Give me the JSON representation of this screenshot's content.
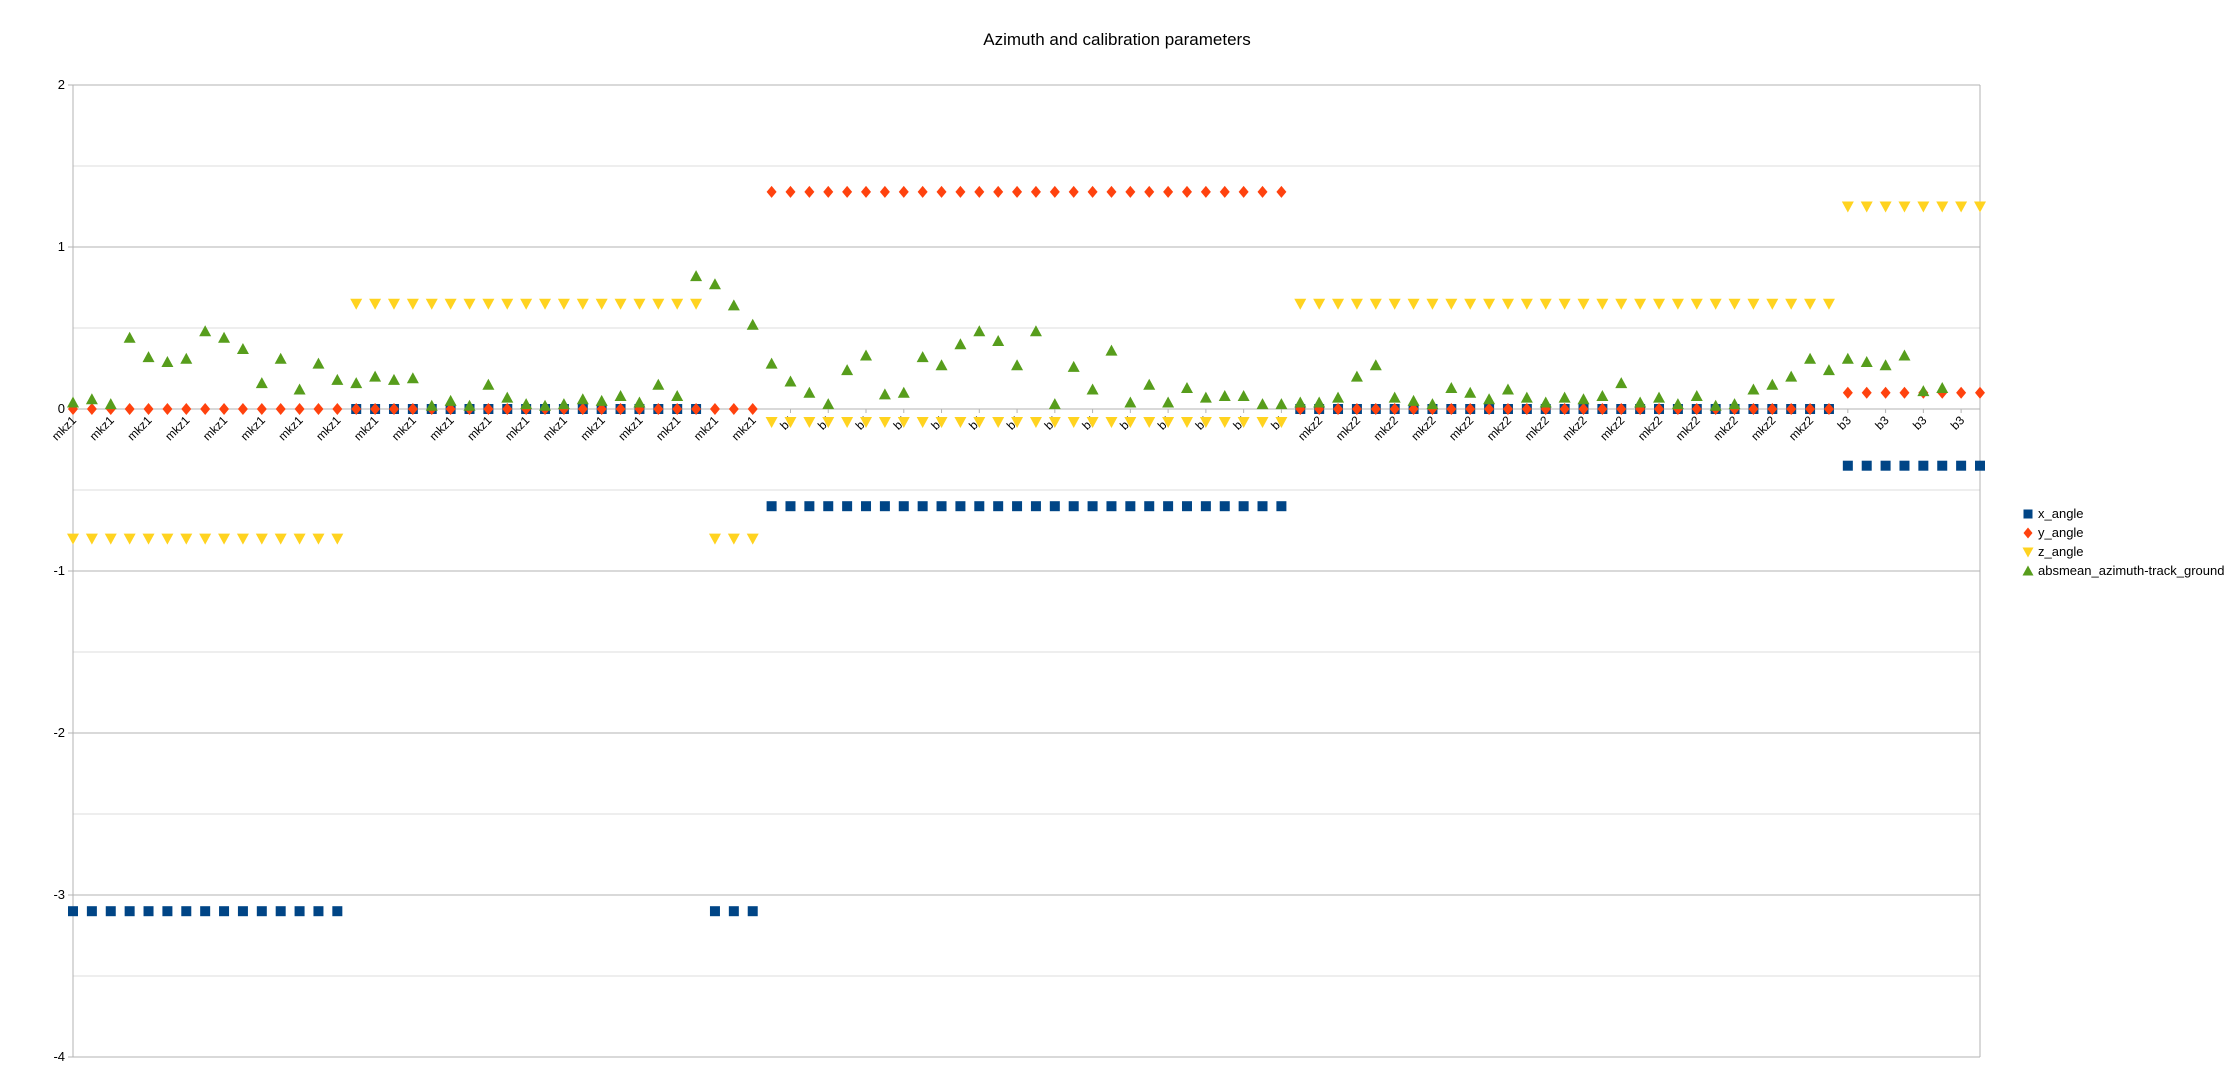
{
  "chart_data": {
    "type": "scatter",
    "title": "Azimuth and calibration parameters",
    "xlabel": "",
    "ylabel": "",
    "ylim": [
      -4,
      2
    ],
    "yticks": [
      "2",
      "1",
      "0",
      "-1",
      "-2",
      "-3",
      "-4"
    ],
    "grid": true,
    "legend_position": "right",
    "categories": [
      "mkz1",
      "mkz1",
      "mkz1",
      "mkz1",
      "mkz1",
      "mkz1",
      "mkz1",
      "mkz1",
      "mkz1",
      "mkz1",
      "mkz1",
      "mkz1",
      "mkz1",
      "mkz1",
      "mkz1",
      "mkz1",
      "mkz1",
      "mkz1",
      "mkz1",
      "mkz1",
      "mkz1",
      "mkz1",
      "mkz1",
      "mkz1",
      "mkz1",
      "mkz1",
      "mkz1",
      "mkz1",
      "mkz1",
      "mkz1",
      "mkz1",
      "mkz1",
      "mkz1",
      "mkz1",
      "mkz1",
      "mkz1",
      "mkz1",
      "b4",
      "b4",
      "b4",
      "b4",
      "b4",
      "b4",
      "b4",
      "b4",
      "b4",
      "b4",
      "b4",
      "b4",
      "b4",
      "b4",
      "b4",
      "b4",
      "b4",
      "b4",
      "b4",
      "b4",
      "b4",
      "b4",
      "b4",
      "b4",
      "b4",
      "b4",
      "b4",
      "b4",
      "mkz2",
      "mkz2",
      "mkz2",
      "mkz2",
      "mkz2",
      "mkz2",
      "mkz2",
      "mkz2",
      "mkz2",
      "mkz2",
      "mkz2",
      "mkz2",
      "mkz2",
      "mkz2",
      "mkz2",
      "mkz2",
      "mkz2",
      "mkz2",
      "mkz2",
      "mkz2",
      "mkz2",
      "mkz2",
      "mkz2",
      "mkz2",
      "mkz2",
      "mkz2",
      "mkz2",
      "mkz2",
      "mkz2",
      "b3",
      "b3",
      "b3",
      "b3",
      "b3",
      "b3",
      "b3",
      "b3"
    ],
    "series": [
      {
        "name": "x_angle",
        "color": "#004586",
        "marker": "square",
        "values": [
          -3.1,
          -3.1,
          -3.1,
          -3.1,
          -3.1,
          -3.1,
          -3.1,
          -3.1,
          -3.1,
          -3.1,
          -3.1,
          -3.1,
          -3.1,
          -3.1,
          -3.1,
          0,
          0,
          0,
          0,
          0,
          0,
          0,
          0,
          0,
          0,
          0,
          0,
          0,
          0,
          0,
          0,
          0,
          0,
          0,
          -3.1,
          -3.1,
          -3.1,
          -0.6,
          -0.6,
          -0.6,
          -0.6,
          -0.6,
          -0.6,
          -0.6,
          -0.6,
          -0.6,
          -0.6,
          -0.6,
          -0.6,
          -0.6,
          -0.6,
          -0.6,
          -0.6,
          -0.6,
          -0.6,
          -0.6,
          -0.6,
          -0.6,
          -0.6,
          -0.6,
          -0.6,
          -0.6,
          -0.6,
          -0.6,
          -0.6,
          0,
          0,
          0,
          0,
          0,
          0,
          0,
          0,
          0,
          0,
          0,
          0,
          0,
          0,
          0,
          0,
          0,
          0,
          0,
          0,
          0,
          0,
          0,
          0,
          0,
          0,
          0,
          0,
          0,
          -0.35,
          -0.35,
          -0.35,
          -0.35,
          -0.35,
          -0.35,
          -0.35,
          -0.35
        ]
      },
      {
        "name": "y_angle",
        "color": "#ff420e",
        "marker": "diamond",
        "values": [
          0,
          0,
          0,
          0,
          0,
          0,
          0,
          0,
          0,
          0,
          0,
          0,
          0,
          0,
          0,
          0,
          0,
          0,
          0,
          0,
          0,
          0,
          0,
          0,
          0,
          0,
          0,
          0,
          0,
          0,
          0,
          0,
          0,
          0,
          0,
          0,
          0,
          1.34,
          1.34,
          1.34,
          1.34,
          1.34,
          1.34,
          1.34,
          1.34,
          1.34,
          1.34,
          1.34,
          1.34,
          1.34,
          1.34,
          1.34,
          1.34,
          1.34,
          1.34,
          1.34,
          1.34,
          1.34,
          1.34,
          1.34,
          1.34,
          1.34,
          1.34,
          1.34,
          1.34,
          0,
          0,
          0,
          0,
          0,
          0,
          0,
          0,
          0,
          0,
          0,
          0,
          0,
          0,
          0,
          0,
          0,
          0,
          0,
          0,
          0,
          0,
          0,
          0,
          0,
          0,
          0,
          0,
          0,
          0.1,
          0.1,
          0.1,
          0.1,
          0.1,
          0.1,
          0.1,
          0.1
        ]
      },
      {
        "name": "z_angle",
        "color": "#ffd320",
        "marker": "triangle-down",
        "values": [
          -0.8,
          -0.8,
          -0.8,
          -0.8,
          -0.8,
          -0.8,
          -0.8,
          -0.8,
          -0.8,
          -0.8,
          -0.8,
          -0.8,
          -0.8,
          -0.8,
          -0.8,
          0.65,
          0.65,
          0.65,
          0.65,
          0.65,
          0.65,
          0.65,
          0.65,
          0.65,
          0.65,
          0.65,
          0.65,
          0.65,
          0.65,
          0.65,
          0.65,
          0.65,
          0.65,
          0.65,
          -0.8,
          -0.8,
          -0.8,
          -0.08,
          -0.08,
          -0.08,
          -0.08,
          -0.08,
          -0.08,
          -0.08,
          -0.08,
          -0.08,
          -0.08,
          -0.08,
          -0.08,
          -0.08,
          -0.08,
          -0.08,
          -0.08,
          -0.08,
          -0.08,
          -0.08,
          -0.08,
          -0.08,
          -0.08,
          -0.08,
          -0.08,
          -0.08,
          -0.08,
          -0.08,
          -0.08,
          0.65,
          0.65,
          0.65,
          0.65,
          0.65,
          0.65,
          0.65,
          0.65,
          0.65,
          0.65,
          0.65,
          0.65,
          0.65,
          0.65,
          0.65,
          0.65,
          0.65,
          0.65,
          0.65,
          0.65,
          0.65,
          0.65,
          0.65,
          0.65,
          0.65,
          0.65,
          0.65,
          0.65,
          0.65,
          1.25,
          1.25,
          1.25,
          1.25,
          1.25,
          1.25,
          1.25,
          1.25
        ]
      },
      {
        "name": "absmean_azimuth-track_ground",
        "color": "#579d1c",
        "marker": "triangle-up",
        "values": [
          0.04,
          0.06,
          0.03,
          0.44,
          0.32,
          0.29,
          0.31,
          0.48,
          0.44,
          0.37,
          0.16,
          0.31,
          0.12,
          0.28,
          0.18,
          0.16,
          0.2,
          0.18,
          0.19,
          0.02,
          0.05,
          0.02,
          0.15,
          0.07,
          0.03,
          0.02,
          0.03,
          0.06,
          0.05,
          0.08,
          0.04,
          0.15,
          0.08,
          0.82,
          0.77,
          0.64,
          0.52,
          0.28,
          0.17,
          0.1,
          0.03,
          0.24,
          0.33,
          0.09,
          0.1,
          0.32,
          0.27,
          0.4,
          0.48,
          0.42,
          0.27,
          0.48,
          0.03,
          0.26,
          0.12,
          0.36,
          0.04,
          0.15,
          0.04,
          0.13,
          0.07,
          0.08,
          0.08,
          0.03,
          0.03,
          0.04,
          0.04,
          0.07,
          0.2,
          0.27,
          0.07,
          0.05,
          0.03,
          0.13,
          0.1,
          0.06,
          0.12,
          0.07,
          0.04,
          0.07,
          0.06,
          0.08,
          0.16,
          0.04,
          0.07,
          0.03,
          0.08,
          0.02,
          0.03,
          0.12,
          0.15,
          0.2,
          0.31,
          0.24,
          0.31,
          0.29,
          0.27,
          0.33,
          0.11,
          0.13
        ]
      }
    ]
  }
}
